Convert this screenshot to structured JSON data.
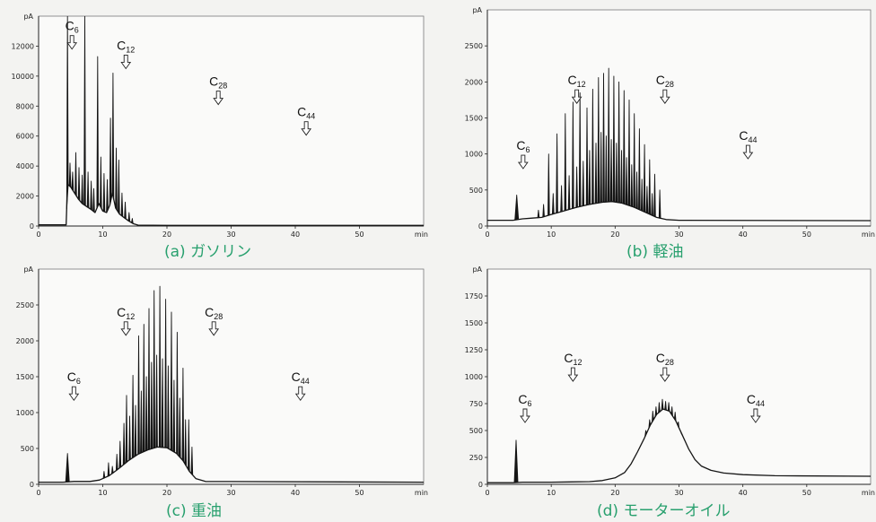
{
  "colors": {
    "trace": "#151515",
    "caption": "#28a06e",
    "background": "#f3f3f1"
  },
  "chart_data": [
    {
      "type": "line",
      "title": "(a) ガソリン",
      "xlabel": "min",
      "ylabel": "pA",
      "xlim": [
        0,
        60
      ],
      "ylim": [
        0,
        14000
      ],
      "xticks": [
        0,
        10,
        20,
        30,
        40,
        50
      ],
      "yticks": [
        0,
        2000,
        4000,
        6000,
        8000,
        10000,
        12000
      ],
      "grid": false,
      "trace": {
        "baseline": [
          [
            0,
            80
          ],
          [
            4.3,
            80
          ],
          [
            4.5,
            2800
          ],
          [
            5.0,
            2600
          ],
          [
            5.6,
            2200
          ],
          [
            6.2,
            1800
          ],
          [
            6.8,
            1500
          ],
          [
            7.5,
            1300
          ],
          [
            8.2,
            1100
          ],
          [
            8.8,
            900
          ],
          [
            9.4,
            1500
          ],
          [
            10.0,
            1000
          ],
          [
            10.6,
            900
          ],
          [
            11.1,
            1400
          ],
          [
            11.5,
            2200
          ],
          [
            12.0,
            1200
          ],
          [
            12.6,
            800
          ],
          [
            13.2,
            600
          ],
          [
            14.0,
            350
          ],
          [
            14.8,
            150
          ],
          [
            15.5,
            60
          ],
          [
            20,
            40
          ],
          [
            60,
            40
          ]
        ],
        "peaks": [
          [
            4.5,
            14000
          ],
          [
            4.9,
            4200
          ],
          [
            5.3,
            3600
          ],
          [
            5.8,
            4900
          ],
          [
            6.3,
            3900
          ],
          [
            6.8,
            3400
          ],
          [
            7.2,
            14000
          ],
          [
            7.7,
            3600
          ],
          [
            8.2,
            3000
          ],
          [
            8.6,
            2500
          ],
          [
            9.2,
            11300
          ],
          [
            9.7,
            4600
          ],
          [
            10.2,
            3500
          ],
          [
            10.7,
            3100
          ],
          [
            11.2,
            7200
          ],
          [
            11.6,
            10200
          ],
          [
            12.1,
            5200
          ],
          [
            12.5,
            4400
          ],
          [
            13.0,
            2200
          ],
          [
            13.5,
            1600
          ],
          [
            14.1,
            900
          ],
          [
            14.6,
            500
          ]
        ]
      },
      "annotations": [
        {
          "label": "C",
          "sub": "6",
          "x": 5.2,
          "y": 12700
        },
        {
          "label": "C",
          "sub": "12",
          "x": 13.6,
          "y": 11400
        },
        {
          "label": "C",
          "sub": "28",
          "x": 28.0,
          "y": 9000
        },
        {
          "label": "C",
          "sub": "44",
          "x": 41.7,
          "y": 6960
        }
      ]
    },
    {
      "type": "line",
      "title": "(b) 軽油",
      "xlabel": "min",
      "ylabel": "pA",
      "xlim": [
        0,
        60
      ],
      "ylim": [
        0,
        3000
      ],
      "xticks": [
        0,
        10,
        20,
        30,
        40,
        50
      ],
      "yticks": [
        0,
        500,
        1000,
        1500,
        2000,
        2500
      ],
      "grid": false,
      "trace": {
        "baseline": [
          [
            0,
            80
          ],
          [
            4.0,
            80
          ],
          [
            5.5,
            100
          ],
          [
            7,
            110
          ],
          [
            8.5,
            120
          ],
          [
            10,
            160
          ],
          [
            12,
            210
          ],
          [
            14,
            260
          ],
          [
            16,
            300
          ],
          [
            18,
            330
          ],
          [
            19.5,
            340
          ],
          [
            21,
            320
          ],
          [
            23,
            260
          ],
          [
            25,
            180
          ],
          [
            26.5,
            120
          ],
          [
            28,
            90
          ],
          [
            30,
            80
          ],
          [
            60,
            75
          ]
        ],
        "peaks": [
          [
            4.6,
            430
          ],
          [
            8.0,
            220
          ],
          [
            8.8,
            300
          ],
          [
            9.6,
            1000
          ],
          [
            10.3,
            450
          ],
          [
            10.9,
            1280
          ],
          [
            11.6,
            560
          ],
          [
            12.2,
            1560
          ],
          [
            12.8,
            700
          ],
          [
            13.4,
            1720
          ],
          [
            14.0,
            820
          ],
          [
            14.5,
            1850
          ],
          [
            15.0,
            900
          ],
          [
            15.6,
            1640
          ],
          [
            16.0,
            1050
          ],
          [
            16.5,
            1900
          ],
          [
            17.0,
            1150
          ],
          [
            17.4,
            2060
          ],
          [
            17.8,
            1300
          ],
          [
            18.2,
            2120
          ],
          [
            18.6,
            1250
          ],
          [
            19.0,
            2190
          ],
          [
            19.4,
            1200
          ],
          [
            19.8,
            2080
          ],
          [
            20.2,
            1150
          ],
          [
            20.6,
            2000
          ],
          [
            21.0,
            1050
          ],
          [
            21.4,
            1880
          ],
          [
            21.8,
            950
          ],
          [
            22.2,
            1750
          ],
          [
            22.6,
            850
          ],
          [
            23.0,
            1560
          ],
          [
            23.4,
            750
          ],
          [
            23.8,
            1350
          ],
          [
            24.2,
            650
          ],
          [
            24.6,
            1130
          ],
          [
            25.0,
            550
          ],
          [
            25.4,
            920
          ],
          [
            25.8,
            450
          ],
          [
            26.2,
            720
          ],
          [
            27.0,
            500
          ]
        ]
      },
      "annotations": [
        {
          "label": "C",
          "sub": "6",
          "x": 5.6,
          "y": 983
        },
        {
          "label": "C",
          "sub": "12",
          "x": 14.0,
          "y": 1890
        },
        {
          "label": "C",
          "sub": "28",
          "x": 27.8,
          "y": 1890
        },
        {
          "label": "C",
          "sub": "44",
          "x": 40.8,
          "y": 1120
        }
      ]
    },
    {
      "type": "line",
      "title": "(c) 重油",
      "xlabel": "min",
      "ylabel": "pA",
      "xlim": [
        0,
        60
      ],
      "ylim": [
        0,
        3000
      ],
      "xticks": [
        0,
        10,
        20,
        30,
        40,
        50
      ],
      "yticks": [
        0,
        500,
        1000,
        1500,
        2000,
        2500
      ],
      "grid": false,
      "trace": {
        "baseline": [
          [
            0,
            30
          ],
          [
            3.8,
            30
          ],
          [
            5.5,
            40
          ],
          [
            8,
            40
          ],
          [
            9.5,
            60
          ],
          [
            11,
            120
          ],
          [
            12.5,
            220
          ],
          [
            14,
            330
          ],
          [
            15.5,
            420
          ],
          [
            17,
            480
          ],
          [
            18.5,
            520
          ],
          [
            20,
            510
          ],
          [
            21.5,
            430
          ],
          [
            22.5,
            330
          ],
          [
            23.5,
            180
          ],
          [
            24.5,
            80
          ],
          [
            26,
            40
          ],
          [
            60,
            30
          ]
        ],
        "peaks": [
          [
            4.5,
            430
          ],
          [
            10.2,
            180
          ],
          [
            10.9,
            300
          ],
          [
            11.5,
            250
          ],
          [
            12.2,
            420
          ],
          [
            12.7,
            600
          ],
          [
            13.3,
            850
          ],
          [
            13.7,
            1240
          ],
          [
            14.2,
            950
          ],
          [
            14.7,
            1520
          ],
          [
            15.1,
            1100
          ],
          [
            15.6,
            2070
          ],
          [
            16.0,
            1300
          ],
          [
            16.4,
            2230
          ],
          [
            16.8,
            1500
          ],
          [
            17.2,
            2450
          ],
          [
            17.6,
            1700
          ],
          [
            18.0,
            2700
          ],
          [
            18.4,
            1800
          ],
          [
            18.9,
            2760
          ],
          [
            19.3,
            1750
          ],
          [
            19.8,
            2580
          ],
          [
            20.2,
            1650
          ],
          [
            20.7,
            2400
          ],
          [
            21.1,
            1450
          ],
          [
            21.6,
            2120
          ],
          [
            22.0,
            1200
          ],
          [
            22.5,
            1620
          ],
          [
            22.9,
            900
          ],
          [
            23.4,
            900
          ],
          [
            23.9,
            520
          ]
        ]
      },
      "annotations": [
        {
          "label": "C",
          "sub": "6",
          "x": 5.5,
          "y": 1360
        },
        {
          "label": "C",
          "sub": "12",
          "x": 13.6,
          "y": 2265
        },
        {
          "label": "C",
          "sub": "28",
          "x": 27.3,
          "y": 2265
        },
        {
          "label": "C",
          "sub": "44",
          "x": 40.8,
          "y": 1360
        }
      ]
    },
    {
      "type": "line",
      "title": "(d) モーターオイル",
      "xlabel": "min",
      "ylabel": "pA",
      "xlim": [
        0,
        60
      ],
      "ylim": [
        0,
        2000
      ],
      "xticks": [
        0,
        10,
        20,
        30,
        40,
        50
      ],
      "yticks": [
        0,
        250,
        500,
        750,
        1000,
        1250,
        1500,
        1750
      ],
      "grid": false,
      "trace": {
        "baseline": [
          [
            0,
            15
          ],
          [
            4.0,
            15
          ],
          [
            5.5,
            20
          ],
          [
            10,
            20
          ],
          [
            16,
            25
          ],
          [
            18,
            35
          ],
          [
            20,
            60
          ],
          [
            21.5,
            110
          ],
          [
            22.5,
            190
          ],
          [
            23.5,
            300
          ],
          [
            24.5,
            420
          ],
          [
            25.5,
            550
          ],
          [
            26.5,
            650
          ],
          [
            27.5,
            700
          ],
          [
            28.5,
            680
          ],
          [
            29.5,
            590
          ],
          [
            30.5,
            460
          ],
          [
            31.5,
            330
          ],
          [
            32.5,
            230
          ],
          [
            33.5,
            170
          ],
          [
            35,
            130
          ],
          [
            37,
            105
          ],
          [
            40,
            90
          ],
          [
            45,
            80
          ],
          [
            60,
            75
          ]
        ],
        "peaks": [
          [
            4.5,
            410
          ],
          [
            24.8,
            500
          ],
          [
            25.4,
            600
          ],
          [
            25.9,
            680
          ],
          [
            26.4,
            720
          ],
          [
            26.9,
            760
          ],
          [
            27.4,
            790
          ],
          [
            27.9,
            770
          ],
          [
            28.4,
            760
          ],
          [
            28.9,
            720
          ],
          [
            29.4,
            670
          ],
          [
            29.9,
            580
          ],
          [
            30.4,
            470
          ]
        ]
      },
      "annotations": [
        {
          "label": "C",
          "sub": "6",
          "x": 5.9,
          "y": 700
        },
        {
          "label": "C",
          "sub": "12",
          "x": 13.4,
          "y": 1083
        },
        {
          "label": "C",
          "sub": "28",
          "x": 27.8,
          "y": 1083
        },
        {
          "label": "C",
          "sub": "44",
          "x": 42.0,
          "y": 700
        }
      ]
    }
  ]
}
